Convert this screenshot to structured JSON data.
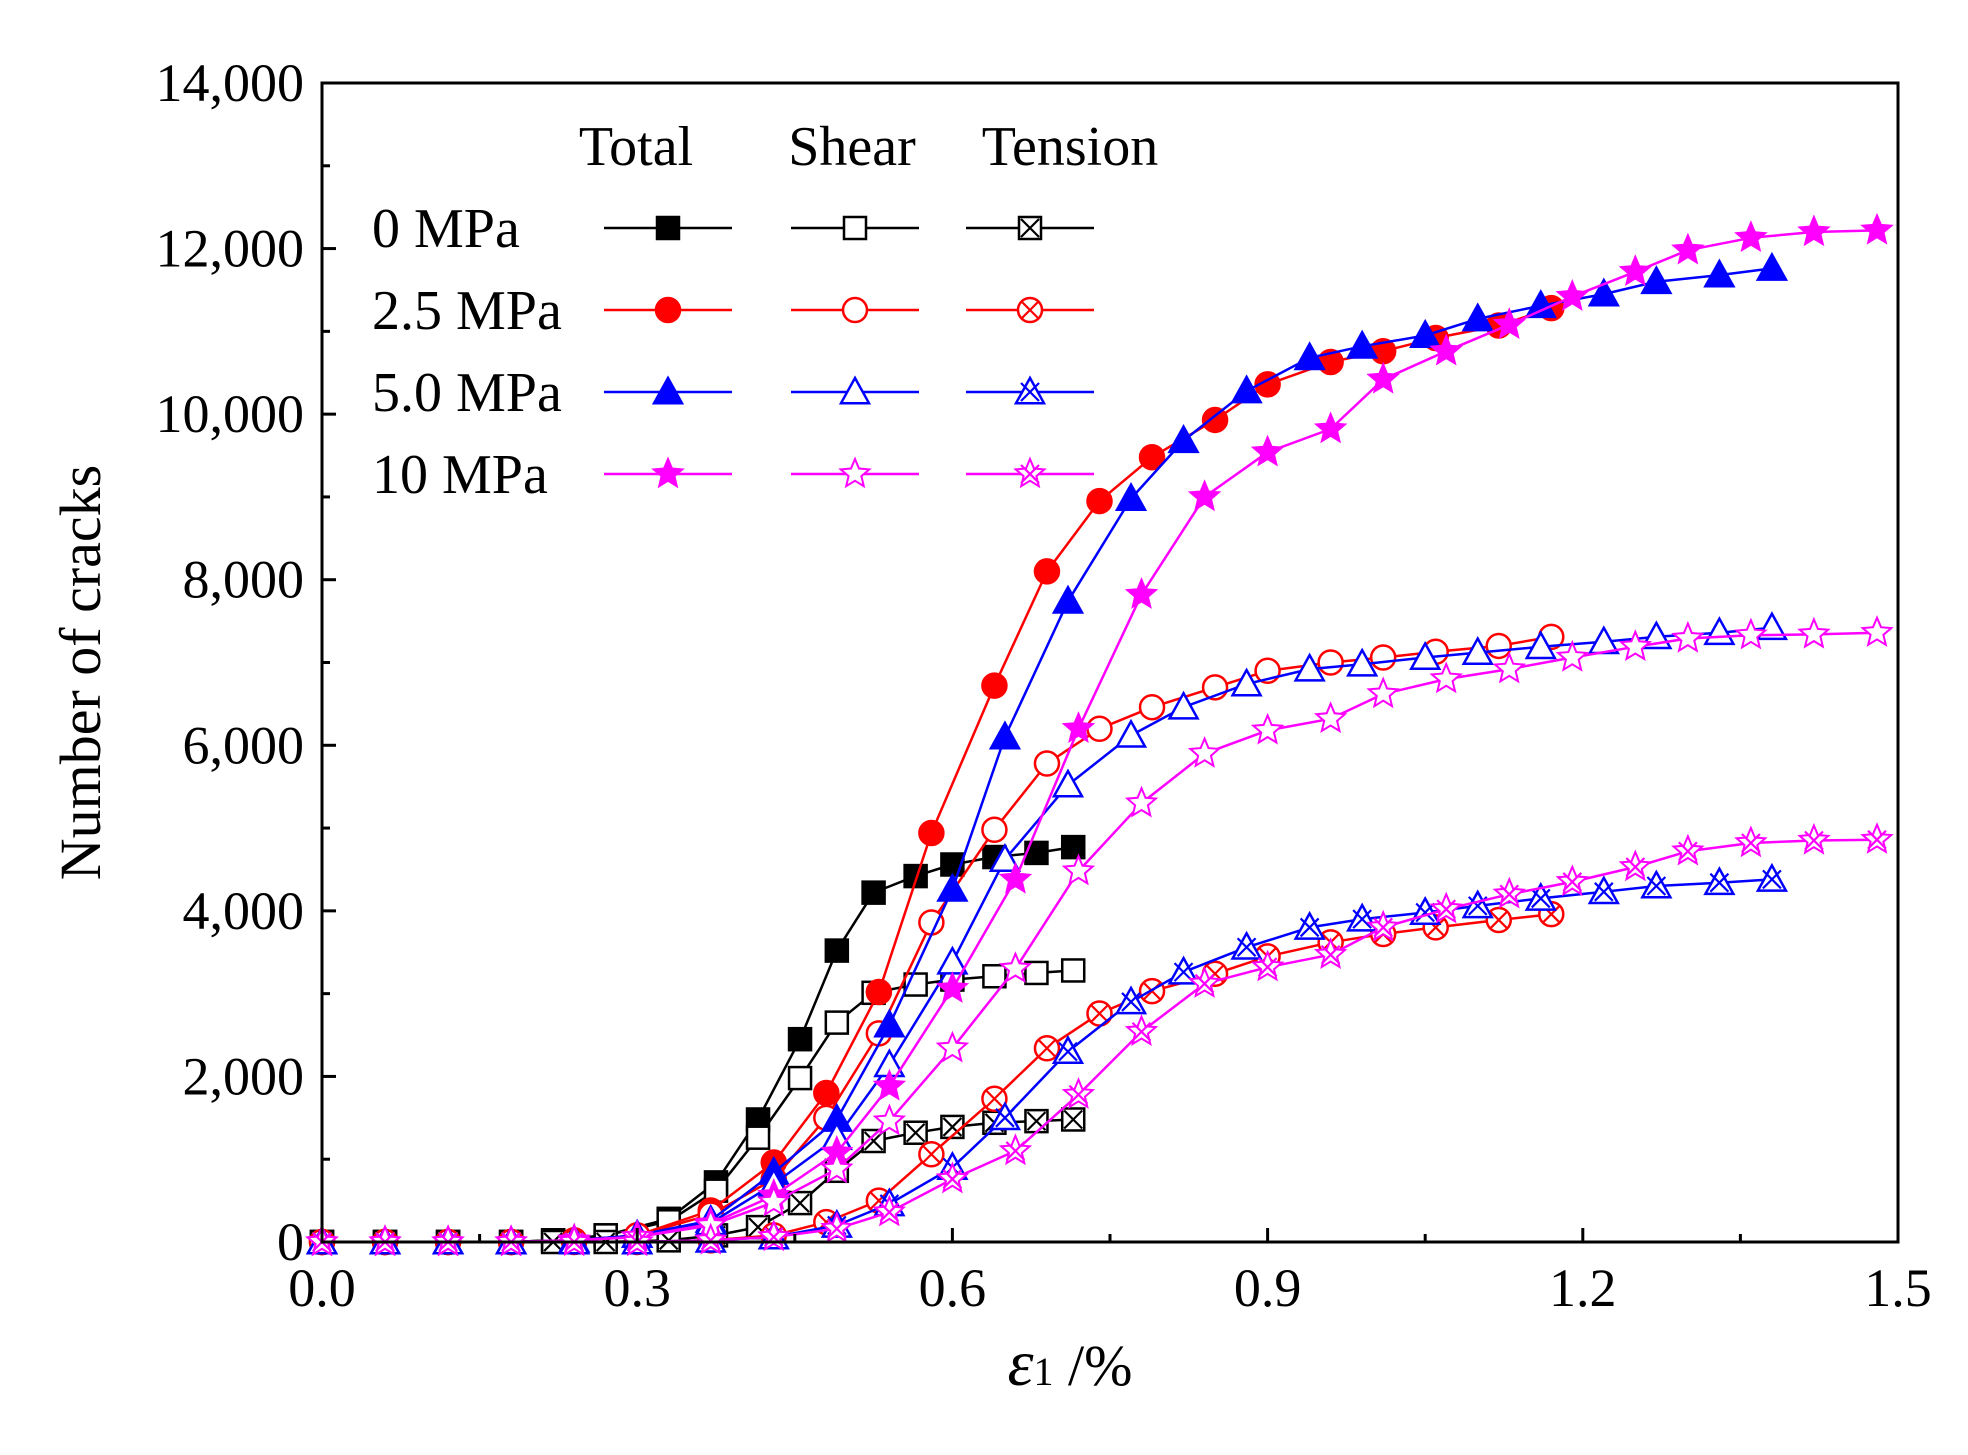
{
  "chart_data": {
    "type": "line",
    "title": "",
    "xlabel_symbol": "ε",
    "xlabel_sub": "1",
    "xlabel_unit": " /%",
    "ylabel": "Number of cracks",
    "xlim": [
      0,
      1.5
    ],
    "ylim": [
      0,
      14000
    ],
    "xticks": [
      0,
      0.3,
      0.6,
      0.9,
      1.2,
      1.5
    ],
    "xtick_labels": [
      "0.0",
      "0.3",
      "0.6",
      "0.9",
      "1.2",
      "1.5"
    ],
    "yticks": [
      0,
      2000,
      4000,
      6000,
      8000,
      10000,
      12000,
      14000
    ],
    "ytick_labels": [
      "0",
      "2,000",
      "4,000",
      "6,000",
      "8,000",
      "10,000",
      "12,000",
      "14,000"
    ],
    "grid": false,
    "legend": {
      "placement": "top-left",
      "headers": [
        "Total",
        "Shear",
        "Tension"
      ],
      "rows": [
        "0 MPa",
        "2.5 MPa",
        "5.0 MPa",
        "10 MPa"
      ]
    },
    "colors": {
      "0 MPa": "#000000",
      "2.5 MPa": "#ff0000",
      "5.0 MPa": "#0000ff",
      "10 MPa": "#ff00ff"
    },
    "series": [
      {
        "name": "0 MPa Total",
        "group": "0 MPa",
        "kind": "Total",
        "marker": "square-filled",
        "x": [
          0,
          0.06,
          0.12,
          0.18,
          0.22,
          0.27,
          0.33,
          0.375,
          0.415,
          0.455,
          0.49,
          0.525,
          0.565,
          0.6,
          0.64,
          0.68,
          0.715
        ],
        "y": [
          0,
          0,
          0,
          0,
          20,
          80,
          280,
          720,
          1480,
          2450,
          3520,
          4220,
          4420,
          4560,
          4650,
          4700,
          4770
        ]
      },
      {
        "name": "0 MPa Shear",
        "group": "0 MPa",
        "kind": "Shear",
        "marker": "square-open",
        "x": [
          0,
          0.06,
          0.12,
          0.18,
          0.22,
          0.27,
          0.33,
          0.375,
          0.415,
          0.455,
          0.49,
          0.525,
          0.565,
          0.6,
          0.64,
          0.68,
          0.715
        ],
        "y": [
          0,
          0,
          0,
          0,
          20,
          80,
          250,
          620,
          1260,
          1980,
          2650,
          3010,
          3110,
          3170,
          3210,
          3250,
          3280
        ]
      },
      {
        "name": "0 MPa Tension",
        "group": "0 MPa",
        "kind": "Tension",
        "marker": "square-x",
        "x": [
          0,
          0.06,
          0.12,
          0.18,
          0.22,
          0.27,
          0.33,
          0.375,
          0.415,
          0.455,
          0.49,
          0.525,
          0.565,
          0.6,
          0.64,
          0.68,
          0.715
        ],
        "y": [
          0,
          0,
          0,
          0,
          0,
          0,
          20,
          80,
          180,
          470,
          860,
          1220,
          1320,
          1390,
          1440,
          1460,
          1480
        ]
      },
      {
        "name": "2.5 MPa Total",
        "group": "2.5 MPa",
        "kind": "Total",
        "marker": "circle-filled",
        "x": [
          0,
          0.06,
          0.12,
          0.18,
          0.24,
          0.3,
          0.37,
          0.43,
          0.48,
          0.53,
          0.58,
          0.64,
          0.69,
          0.74,
          0.79,
          0.85,
          0.9,
          0.96,
          1.01,
          1.06,
          1.12,
          1.17
        ],
        "y": [
          0,
          0,
          0,
          0,
          20,
          80,
          380,
          960,
          1800,
          3020,
          4940,
          6720,
          8100,
          8950,
          9480,
          9930,
          10360,
          10630,
          10760,
          10920,
          11070,
          11280
        ]
      },
      {
        "name": "2.5 MPa Shear",
        "group": "2.5 MPa",
        "kind": "Shear",
        "marker": "circle-open",
        "x": [
          0,
          0.06,
          0.12,
          0.18,
          0.24,
          0.3,
          0.37,
          0.43,
          0.48,
          0.53,
          0.58,
          0.64,
          0.69,
          0.74,
          0.79,
          0.85,
          0.9,
          0.96,
          1.01,
          1.06,
          1.12,
          1.17
        ],
        "y": [
          0,
          0,
          0,
          0,
          20,
          80,
          330,
          760,
          1500,
          2520,
          3860,
          4980,
          5780,
          6200,
          6460,
          6700,
          6900,
          7000,
          7060,
          7130,
          7200,
          7310
        ]
      },
      {
        "name": "2.5 MPa Tension",
        "group": "2.5 MPa",
        "kind": "Tension",
        "marker": "circle-x",
        "x": [
          0,
          0.06,
          0.12,
          0.18,
          0.24,
          0.3,
          0.37,
          0.43,
          0.48,
          0.53,
          0.58,
          0.64,
          0.69,
          0.74,
          0.79,
          0.85,
          0.9,
          0.96,
          1.01,
          1.06,
          1.12,
          1.17
        ],
        "y": [
          0,
          0,
          0,
          0,
          0,
          0,
          20,
          80,
          240,
          500,
          1060,
          1730,
          2340,
          2760,
          3030,
          3240,
          3450,
          3620,
          3720,
          3800,
          3890,
          3960
        ]
      },
      {
        "name": "5.0 MPa Total",
        "group": "5.0 MPa",
        "kind": "Total",
        "marker": "triangle-filled",
        "x": [
          0,
          0.06,
          0.12,
          0.18,
          0.24,
          0.3,
          0.37,
          0.43,
          0.49,
          0.54,
          0.6,
          0.65,
          0.71,
          0.77,
          0.82,
          0.88,
          0.94,
          0.99,
          1.05,
          1.1,
          1.16,
          1.22,
          1.27,
          1.33,
          1.38
        ],
        "y": [
          0,
          0,
          0,
          0,
          20,
          80,
          260,
          840,
          1480,
          2620,
          4260,
          6100,
          7740,
          8980,
          9680,
          10280,
          10680,
          10820,
          10950,
          11150,
          11310,
          11450,
          11600,
          11680,
          11760
        ]
      },
      {
        "name": "5.0 MPa Shear",
        "group": "5.0 MPa",
        "kind": "Shear",
        "marker": "triangle-open",
        "x": [
          0,
          0.06,
          0.12,
          0.18,
          0.24,
          0.3,
          0.37,
          0.43,
          0.49,
          0.54,
          0.6,
          0.65,
          0.71,
          0.77,
          0.82,
          0.88,
          0.94,
          0.99,
          1.05,
          1.1,
          1.16,
          1.22,
          1.27,
          1.33,
          1.38
        ],
        "y": [
          0,
          0,
          0,
          0,
          20,
          80,
          230,
          700,
          1260,
          2140,
          3380,
          4620,
          5520,
          6120,
          6460,
          6740,
          6920,
          6980,
          7060,
          7120,
          7190,
          7250,
          7310,
          7360,
          7420
        ]
      },
      {
        "name": "5.0 MPa Tension",
        "group": "5.0 MPa",
        "kind": "Tension",
        "marker": "triangle-x",
        "x": [
          0,
          0.06,
          0.12,
          0.18,
          0.24,
          0.3,
          0.37,
          0.43,
          0.49,
          0.54,
          0.6,
          0.65,
          0.71,
          0.77,
          0.82,
          0.88,
          0.94,
          0.99,
          1.05,
          1.1,
          1.16,
          1.22,
          1.27,
          1.33,
          1.38
        ],
        "y": [
          0,
          0,
          0,
          0,
          0,
          0,
          20,
          60,
          200,
          460,
          900,
          1500,
          2300,
          2900,
          3260,
          3560,
          3800,
          3900,
          3980,
          4060,
          4150,
          4230,
          4300,
          4340,
          4380
        ]
      },
      {
        "name": "10 MPa Total",
        "group": "10 MPa",
        "kind": "Total",
        "marker": "star-filled",
        "x": [
          0,
          0.06,
          0.12,
          0.18,
          0.24,
          0.3,
          0.37,
          0.43,
          0.49,
          0.54,
          0.6,
          0.66,
          0.72,
          0.78,
          0.84,
          0.9,
          0.96,
          1.01,
          1.07,
          1.13,
          1.19,
          1.25,
          1.3,
          1.36,
          1.42,
          1.48
        ],
        "y": [
          0,
          0,
          0,
          0,
          20,
          60,
          220,
          560,
          1080,
          1880,
          3060,
          4380,
          6200,
          7820,
          9000,
          9540,
          9820,
          10420,
          10760,
          11080,
          11420,
          11720,
          11980,
          12130,
          12200,
          12220
        ]
      },
      {
        "name": "10 MPa Shear",
        "group": "10 MPa",
        "kind": "Shear",
        "marker": "star-open",
        "x": [
          0,
          0.06,
          0.12,
          0.18,
          0.24,
          0.3,
          0.37,
          0.43,
          0.49,
          0.54,
          0.6,
          0.66,
          0.72,
          0.78,
          0.84,
          0.9,
          0.96,
          1.01,
          1.07,
          1.13,
          1.19,
          1.25,
          1.3,
          1.36,
          1.42,
          1.48
        ],
        "y": [
          0,
          0,
          0,
          0,
          20,
          60,
          200,
          480,
          880,
          1460,
          2340,
          3300,
          4480,
          5300,
          5900,
          6180,
          6320,
          6620,
          6800,
          6920,
          7060,
          7190,
          7290,
          7330,
          7340,
          7360
        ]
      },
      {
        "name": "10 MPa Tension",
        "group": "10 MPa",
        "kind": "Tension",
        "marker": "star-x",
        "x": [
          0,
          0.06,
          0.12,
          0.18,
          0.24,
          0.3,
          0.37,
          0.43,
          0.49,
          0.54,
          0.6,
          0.66,
          0.72,
          0.78,
          0.84,
          0.9,
          0.96,
          1.01,
          1.07,
          1.13,
          1.19,
          1.25,
          1.3,
          1.36,
          1.42,
          1.48
        ],
        "y": [
          0,
          0,
          0,
          0,
          0,
          0,
          20,
          60,
          160,
          360,
          760,
          1100,
          1780,
          2540,
          3120,
          3320,
          3470,
          3800,
          4020,
          4200,
          4350,
          4530,
          4720,
          4820,
          4850,
          4860
        ]
      }
    ]
  }
}
